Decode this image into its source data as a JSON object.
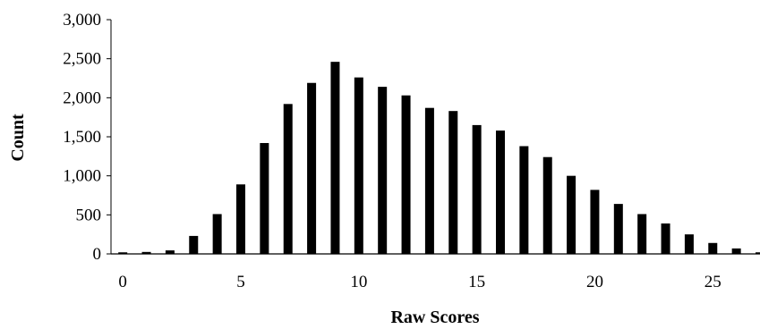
{
  "chart_data": {
    "type": "bar",
    "title": "",
    "xlabel": "Raw Scores",
    "ylabel": "Count",
    "x": [
      0,
      1,
      2,
      3,
      4,
      5,
      6,
      7,
      8,
      9,
      10,
      11,
      12,
      13,
      14,
      15,
      16,
      17,
      18,
      19,
      20,
      21,
      22,
      23,
      24,
      25,
      26,
      27
    ],
    "values": [
      20,
      25,
      45,
      230,
      510,
      890,
      1420,
      1920,
      2190,
      2460,
      2260,
      2140,
      2030,
      1870,
      1830,
      1650,
      1580,
      1380,
      1240,
      1000,
      820,
      640,
      510,
      390,
      250,
      140,
      70,
      20
    ],
    "xlim": [
      -0.5,
      27
    ],
    "ylim": [
      0,
      3000
    ],
    "x_ticks": [
      0,
      5,
      10,
      15,
      20,
      25
    ],
    "x_tick_labels": [
      "0",
      "5",
      "10",
      "15",
      "20",
      "25"
    ],
    "y_ticks": [
      0,
      500,
      1000,
      1500,
      2000,
      2500,
      3000
    ],
    "y_tick_labels": [
      "0",
      "500",
      "1,000",
      "1,500",
      "2,000",
      "2,500",
      "3,000"
    ],
    "grid": false,
    "legend": "none",
    "bar_color": "#000000"
  }
}
